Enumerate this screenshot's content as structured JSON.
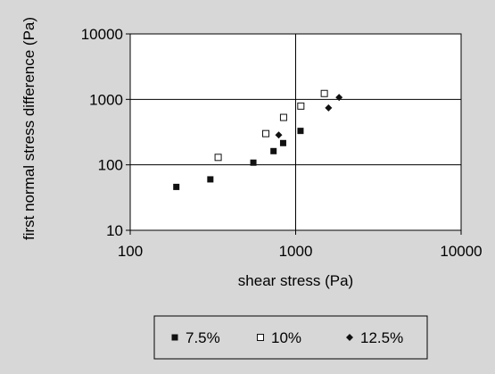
{
  "chart_data": {
    "type": "scatter",
    "title": "",
    "xlabel": "shear stress (Pa)",
    "ylabel": "first normal stress difference (Pa)",
    "x_scale": "log",
    "y_scale": "log",
    "xlim": [
      100,
      10000
    ],
    "ylim": [
      10,
      10000
    ],
    "x_ticks": [
      "100",
      "1000",
      "10000"
    ],
    "y_ticks": [
      "10",
      "100",
      "1000",
      "10000"
    ],
    "grid": "major gridlines on",
    "legend_position": "bottom",
    "series": [
      {
        "name": "7.5%",
        "marker": "filled-square",
        "color": "#000000",
        "points": [
          [
            190,
            46
          ],
          [
            305,
            60
          ],
          [
            555,
            108
          ],
          [
            735,
            162
          ],
          [
            840,
            215
          ],
          [
            1070,
            330
          ]
        ]
      },
      {
        "name": "10%",
        "marker": "open-square",
        "color": "#000000",
        "points": [
          [
            340,
            130
          ],
          [
            660,
            300
          ],
          [
            845,
            530
          ],
          [
            1075,
            790
          ],
          [
            1490,
            1230
          ]
        ]
      },
      {
        "name": "12.5%",
        "marker": "filled-diamond",
        "color": "#000000",
        "points": [
          [
            790,
            285
          ],
          [
            1580,
            740
          ],
          [
            1830,
            1070
          ]
        ]
      }
    ]
  }
}
